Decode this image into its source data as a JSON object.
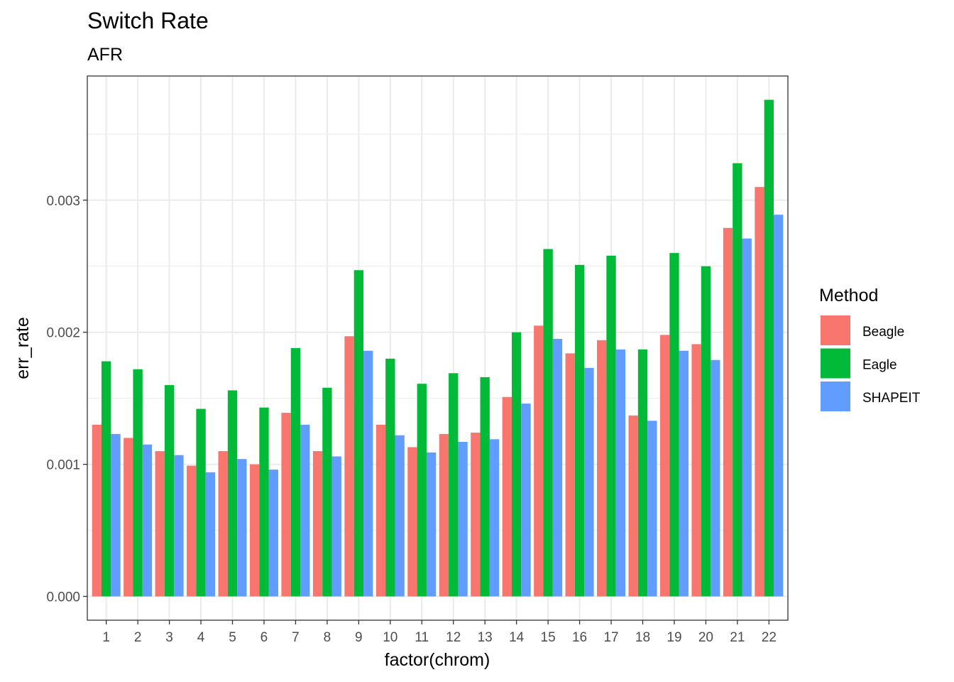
{
  "chart_data": {
    "type": "bar",
    "title": "Switch Rate",
    "subtitle": "AFR",
    "xlabel": "factor(chrom)",
    "ylabel": "err_rate",
    "categories": [
      "1",
      "2",
      "3",
      "4",
      "5",
      "6",
      "7",
      "8",
      "9",
      "10",
      "11",
      "12",
      "13",
      "14",
      "15",
      "16",
      "17",
      "18",
      "19",
      "20",
      "21",
      "22"
    ],
    "y_ticks": [
      "0.000",
      "0.001",
      "0.002",
      "0.003"
    ],
    "y_tick_values": [
      0,
      0.001,
      0.002,
      0.003
    ],
    "ylim": [
      -0.00018,
      0.00394
    ],
    "grid": true,
    "legend": {
      "title": "Method",
      "placement": "right"
    },
    "series": [
      {
        "name": "Beagle",
        "color": "#F8766D",
        "values": [
          0.0013,
          0.0012,
          0.0011,
          0.00099,
          0.0011,
          0.001,
          0.00139,
          0.0011,
          0.00197,
          0.0013,
          0.00113,
          0.00123,
          0.00124,
          0.00151,
          0.00205,
          0.00184,
          0.00194,
          0.00137,
          0.00198,
          0.00191,
          0.00279,
          0.0031
        ]
      },
      {
        "name": "Eagle",
        "color": "#00BA38",
        "values": [
          0.00178,
          0.00172,
          0.0016,
          0.00142,
          0.00156,
          0.00143,
          0.00188,
          0.00158,
          0.00247,
          0.0018,
          0.00161,
          0.00169,
          0.00166,
          0.002,
          0.00263,
          0.00251,
          0.00258,
          0.00187,
          0.0026,
          0.0025,
          0.00328,
          0.00376
        ]
      },
      {
        "name": "SHAPEIT",
        "color": "#619CFF",
        "values": [
          0.00123,
          0.00115,
          0.00107,
          0.00094,
          0.00104,
          0.00096,
          0.0013,
          0.00106,
          0.00186,
          0.00122,
          0.00109,
          0.00117,
          0.00119,
          0.00146,
          0.00195,
          0.00173,
          0.00187,
          0.00133,
          0.00186,
          0.00179,
          0.00271,
          0.00289
        ]
      }
    ]
  }
}
